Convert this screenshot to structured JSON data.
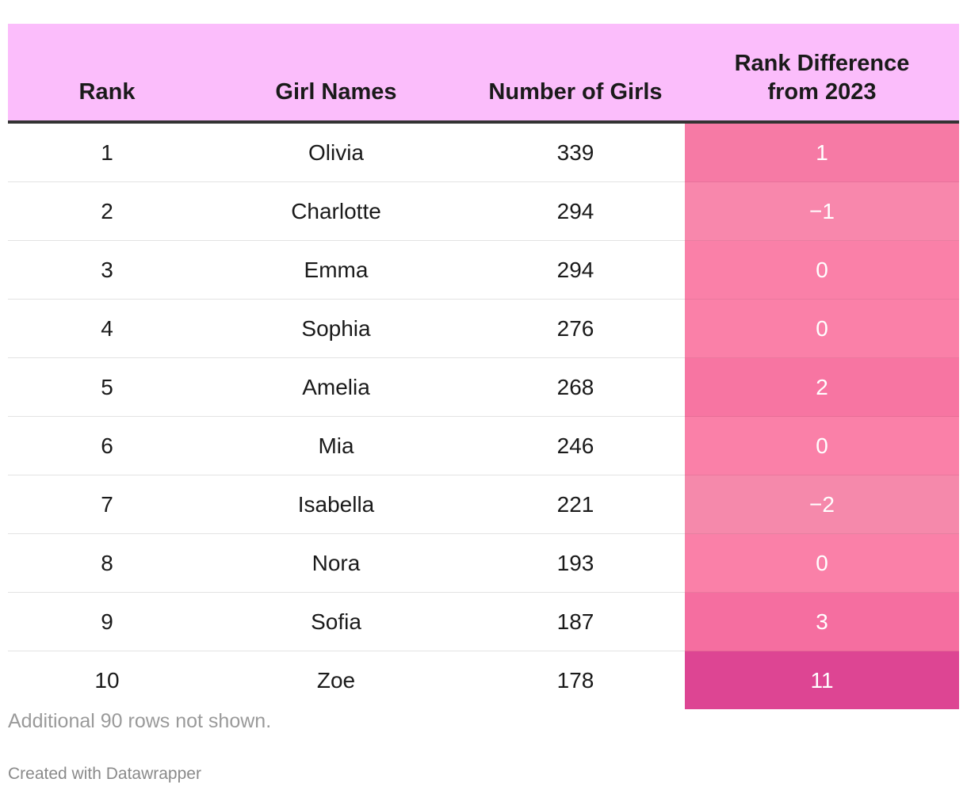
{
  "chart_data": {
    "type": "table",
    "columns": [
      "Rank",
      "Girl Names",
      "Number of Girls",
      "Rank Difference from 2023"
    ],
    "header": {
      "rank": "Rank",
      "name": "Girl Names",
      "count": "Number of Girls",
      "diff_line1": "Rank Difference",
      "diff_line2": "from 2023"
    },
    "rows": [
      {
        "rank": "1",
        "name": "Olivia",
        "count": "339",
        "diff": "1",
        "diff_value": 1
      },
      {
        "rank": "2",
        "name": "Charlotte",
        "count": "294",
        "diff": "−1",
        "diff_value": -1
      },
      {
        "rank": "3",
        "name": "Emma",
        "count": "294",
        "diff": "0",
        "diff_value": 0
      },
      {
        "rank": "4",
        "name": "Sophia",
        "count": "276",
        "diff": "0",
        "diff_value": 0
      },
      {
        "rank": "5",
        "name": "Amelia",
        "count": "268",
        "diff": "2",
        "diff_value": 2
      },
      {
        "rank": "6",
        "name": "Mia",
        "count": "246",
        "diff": "0",
        "diff_value": 0
      },
      {
        "rank": "7",
        "name": "Isabella",
        "count": "221",
        "diff": "−2",
        "diff_value": -2
      },
      {
        "rank": "8",
        "name": "Nora",
        "count": "193",
        "diff": "0",
        "diff_value": 0
      },
      {
        "rank": "9",
        "name": "Sofia",
        "count": "187",
        "diff": "3",
        "diff_value": 3
      },
      {
        "rank": "10",
        "name": "Zoe",
        "count": "178",
        "diff": "11",
        "diff_value": 11
      }
    ],
    "colors": {
      "header_bg": "#fbbdfb",
      "diff_minus2": "#f589ab",
      "diff_minus1": "#f887ac",
      "diff_0": "#fa80a8",
      "diff_1": "#f67aa5",
      "diff_2": "#f775a2",
      "diff_3": "#f56ea0",
      "diff_11": "#dd4593"
    }
  },
  "footer": {
    "note": "Additional 90 rows not shown.",
    "credit": "Created with Datawrapper"
  }
}
